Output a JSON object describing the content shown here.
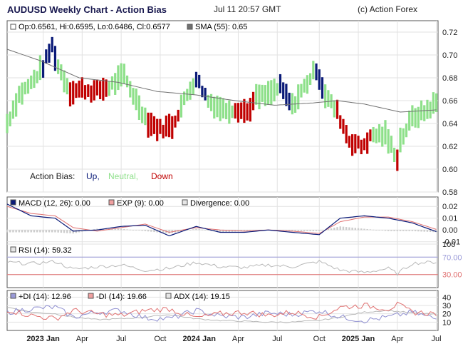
{
  "header": {
    "title": "AUDUSD Weekly Chart - Action Bias",
    "date": "Jul 11 20:57 GMT",
    "credit": "(c) Action Forex"
  },
  "colors": {
    "up": "#0a1a78",
    "neutral": "#8ee08a",
    "down": "#c00000",
    "sma": "#707070",
    "macd": "#0a1a78",
    "signal": "#e07070",
    "divergence": "#cccccc",
    "rsi": "#b8b8b8",
    "rsi_level_high": "#9a9ad8",
    "rsi_level_low": "#e07070",
    "plus_di": "#8e8ed0",
    "minus_di": "#e07070",
    "adx": "#b8b8b8",
    "grid": "#e2e2e2",
    "frame": "#555555"
  },
  "price_panel": {
    "legend_ohlc": "Op:0.6561, Hi:0.6595, Lo:0.6486, Cl:0.6577",
    "legend_sma": "SMA (55): 0.65",
    "bias_label": "Action Bias:",
    "bias_up": "Up,",
    "bias_neutral": "Neutral,",
    "bias_down": "Down"
  },
  "macd_panel": {
    "legend_macd": "MACD (12, 26): 0.00",
    "legend_exp": "EXP (9): 0.00",
    "legend_div": "Divergence: 0.00"
  },
  "rsi_panel": {
    "legend_rsi": "RSI (14): 59.32"
  },
  "dmi_panel": {
    "legend_pdi": "+DI (14): 12.96",
    "legend_mdi": "-DI (14): 19.66",
    "legend_adx": "ADX (14): 19.15"
  },
  "chart_data": [
    {
      "type": "bar",
      "subtype": "ohlc",
      "panel": "price",
      "title": "AUDUSD Weekly Chart - Action Bias",
      "x_range": [
        "2022-10-10",
        "2025-07-11"
      ],
      "ylim": [
        0.58,
        0.73
      ],
      "y_ticks": [
        0.58,
        0.6,
        0.62,
        0.64,
        0.66,
        0.68,
        0.7,
        0.72
      ],
      "y_tick_labels": [
        "0.58",
        "0.60",
        "0.62",
        "0.64",
        "0.66",
        "0.68",
        "0.70",
        "0.72"
      ],
      "x_ticks": [
        {
          "date": "2023-01-02",
          "label": "2023 Jan",
          "bold": true
        },
        {
          "date": "2023-04-03",
          "label": "Apr",
          "bold": false
        },
        {
          "date": "2023-07-03",
          "label": "Jul",
          "bold": false
        },
        {
          "date": "2023-10-02",
          "label": "Oct",
          "bold": false
        },
        {
          "date": "2024-01-01",
          "label": "2024 Jan",
          "bold": true
        },
        {
          "date": "2024-04-01",
          "label": "Apr",
          "bold": false
        },
        {
          "date": "2024-07-01",
          "label": "Jul",
          "bold": false
        },
        {
          "date": "2024-10-07",
          "label": "Oct",
          "bold": false
        },
        {
          "date": "2025-01-06",
          "label": "2025 Jan",
          "bold": true
        },
        {
          "date": "2025-04-07",
          "label": "Apr",
          "bold": false
        },
        {
          "date": "2025-07-07",
          "label": "Jul",
          "bold": false
        }
      ],
      "grid": true,
      "bias_key": [
        "up",
        "neutral",
        "down"
      ],
      "anchors": [
        {
          "x": "2022-10-10",
          "y": 0.64,
          "bias": "neutral"
        },
        {
          "x": "2022-11-07",
          "y": 0.665,
          "bias": "neutral"
        },
        {
          "x": "2022-12-05",
          "y": 0.675,
          "bias": "neutral"
        },
        {
          "x": "2023-01-02",
          "y": 0.69,
          "bias": "up"
        },
        {
          "x": "2023-01-23",
          "y": 0.708,
          "bias": "up"
        },
        {
          "x": "2023-02-06",
          "y": 0.69,
          "bias": "neutral"
        },
        {
          "x": "2023-03-06",
          "y": 0.668,
          "bias": "down"
        },
        {
          "x": "2023-04-03",
          "y": 0.67,
          "bias": "down"
        },
        {
          "x": "2023-05-01",
          "y": 0.668,
          "bias": "down"
        },
        {
          "x": "2023-06-05",
          "y": 0.672,
          "bias": "neutral"
        },
        {
          "x": "2023-07-10",
          "y": 0.682,
          "bias": "neutral"
        },
        {
          "x": "2023-08-07",
          "y": 0.66,
          "bias": "neutral"
        },
        {
          "x": "2023-09-04",
          "y": 0.641,
          "bias": "down"
        },
        {
          "x": "2023-10-02",
          "y": 0.635,
          "bias": "down"
        },
        {
          "x": "2023-10-30",
          "y": 0.638,
          "bias": "down"
        },
        {
          "x": "2023-11-20",
          "y": 0.655,
          "bias": "neutral"
        },
        {
          "x": "2023-12-25",
          "y": 0.68,
          "bias": "up"
        },
        {
          "x": "2024-01-22",
          "y": 0.66,
          "bias": "neutral"
        },
        {
          "x": "2024-02-26",
          "y": 0.652,
          "bias": "neutral"
        },
        {
          "x": "2024-03-25",
          "y": 0.653,
          "bias": "down"
        },
        {
          "x": "2024-04-22",
          "y": 0.65,
          "bias": "down"
        },
        {
          "x": "2024-05-13",
          "y": 0.663,
          "bias": "neutral"
        },
        {
          "x": "2024-06-10",
          "y": 0.665,
          "bias": "neutral"
        },
        {
          "x": "2024-07-08",
          "y": 0.672,
          "bias": "up"
        },
        {
          "x": "2024-08-05",
          "y": 0.655,
          "bias": "neutral"
        },
        {
          "x": "2024-09-02",
          "y": 0.672,
          "bias": "neutral"
        },
        {
          "x": "2024-09-30",
          "y": 0.688,
          "bias": "up"
        },
        {
          "x": "2024-10-21",
          "y": 0.665,
          "bias": "neutral"
        },
        {
          "x": "2024-11-18",
          "y": 0.65,
          "bias": "down"
        },
        {
          "x": "2024-12-16",
          "y": 0.625,
          "bias": "down"
        },
        {
          "x": "2025-01-13",
          "y": 0.62,
          "bias": "down"
        },
        {
          "x": "2025-02-10",
          "y": 0.63,
          "bias": "neutral"
        },
        {
          "x": "2025-03-10",
          "y": 0.63,
          "bias": "neutral"
        },
        {
          "x": "2025-04-07",
          "y": 0.61,
          "bias": "down"
        },
        {
          "x": "2025-04-14",
          "y": 0.625,
          "bias": "neutral"
        },
        {
          "x": "2025-05-12",
          "y": 0.645,
          "bias": "neutral"
        },
        {
          "x": "2025-06-09",
          "y": 0.65,
          "bias": "neutral"
        },
        {
          "x": "2025-07-07",
          "y": 0.658,
          "bias": "neutral"
        }
      ],
      "series": [
        {
          "name": "SMA (55)",
          "kind": "line",
          "points": [
            [
              "2022-10-10",
              0.705
            ],
            [
              "2022-12-26",
              0.695
            ],
            [
              "2023-03-27",
              0.68
            ],
            [
              "2023-06-26",
              0.676
            ],
            [
              "2023-09-25",
              0.668
            ],
            [
              "2023-12-25",
              0.665
            ],
            [
              "2024-03-25",
              0.66
            ],
            [
              "2024-06-24",
              0.656
            ],
            [
              "2024-09-23",
              0.658
            ],
            [
              "2024-11-18",
              0.66
            ],
            [
              "2025-01-20",
              0.657
            ],
            [
              "2025-04-14",
              0.65
            ],
            [
              "2025-07-11",
              0.652
            ]
          ]
        }
      ]
    },
    {
      "type": "line",
      "panel": "macd",
      "ylim": [
        -0.012,
        0.028
      ],
      "y_ticks": [
        -0.01,
        0.0,
        0.01,
        0.02
      ],
      "y_tick_labels": [
        "-0.01",
        "0.00",
        "0.01",
        "0.02"
      ],
      "series": [
        {
          "name": "MACD (12, 26)",
          "points": [
            [
              "2022-10-10",
              0.022
            ],
            [
              "2022-12-05",
              0.012
            ],
            [
              "2023-01-30",
              0.01
            ],
            [
              "2023-03-13",
              -0.001
            ],
            [
              "2023-05-08",
              0.0
            ],
            [
              "2023-07-03",
              0.003
            ],
            [
              "2023-08-28",
              0.004
            ],
            [
              "2023-10-23",
              -0.005
            ],
            [
              "2023-12-25",
              0.003
            ],
            [
              "2024-02-19",
              -0.002
            ],
            [
              "2024-04-15",
              -0.002
            ],
            [
              "2024-06-10",
              0.0
            ],
            [
              "2024-08-05",
              -0.002
            ],
            [
              "2024-10-07",
              -0.004
            ],
            [
              "2024-11-25",
              0.01
            ],
            [
              "2025-01-20",
              0.012
            ],
            [
              "2025-03-17",
              0.01
            ],
            [
              "2025-05-12",
              0.006
            ],
            [
              "2025-07-11",
              -0.002
            ]
          ]
        },
        {
          "name": "EXP (9)",
          "points": [
            [
              "2022-10-10",
              0.02
            ],
            [
              "2022-12-05",
              0.014
            ],
            [
              "2023-01-30",
              0.012
            ],
            [
              "2023-03-13",
              0.002
            ],
            [
              "2023-05-08",
              -0.001
            ],
            [
              "2023-07-03",
              0.002
            ],
            [
              "2023-08-28",
              0.005
            ],
            [
              "2023-10-23",
              -0.002
            ],
            [
              "2023-12-25",
              0.002
            ],
            [
              "2024-02-19",
              0.0
            ],
            [
              "2024-04-15",
              -0.001
            ],
            [
              "2024-06-10",
              0.0
            ],
            [
              "2024-08-05",
              -0.001
            ],
            [
              "2024-10-07",
              -0.003
            ],
            [
              "2024-11-25",
              0.007
            ],
            [
              "2025-01-20",
              0.011
            ],
            [
              "2025-03-17",
              0.011
            ],
            [
              "2025-05-12",
              0.007
            ],
            [
              "2025-07-11",
              0.0
            ]
          ]
        },
        {
          "name": "Divergence",
          "kind": "histogram",
          "points": [
            [
              "2022-10-10",
              -0.002
            ],
            [
              "2022-12-05",
              -0.002
            ],
            [
              "2023-01-30",
              -0.002
            ],
            [
              "2023-03-13",
              -0.003
            ],
            [
              "2023-05-08",
              0.001
            ],
            [
              "2023-07-03",
              0.001
            ],
            [
              "2023-08-28",
              -0.001
            ],
            [
              "2023-10-23",
              -0.003
            ],
            [
              "2023-12-25",
              0.001
            ],
            [
              "2024-02-19",
              -0.002
            ],
            [
              "2024-04-15",
              -0.001
            ],
            [
              "2024-06-10",
              0.0
            ],
            [
              "2024-08-05",
              -0.001
            ],
            [
              "2024-10-07",
              -0.001
            ],
            [
              "2024-11-25",
              0.003
            ],
            [
              "2025-01-20",
              0.001
            ],
            [
              "2025-03-17",
              -0.001
            ],
            [
              "2025-05-12",
              -0.001
            ],
            [
              "2025-07-11",
              -0.002
            ]
          ]
        }
      ]
    },
    {
      "type": "line",
      "panel": "rsi",
      "ylim": [
        0,
        100
      ],
      "y_ticks": [
        30,
        70,
        100
      ],
      "y_tick_labels": [
        "30.00",
        "70.00",
        "100"
      ],
      "levels": [
        70,
        30
      ],
      "series": [
        {
          "name": "RSI (14)",
          "points": [
            [
              "2022-10-10",
              58
            ],
            [
              "2022-12-05",
              55
            ],
            [
              "2023-01-30",
              60
            ],
            [
              "2023-03-13",
              42
            ],
            [
              "2023-05-08",
              48
            ],
            [
              "2023-07-03",
              52
            ],
            [
              "2023-08-28",
              40
            ],
            [
              "2023-10-23",
              44
            ],
            [
              "2023-12-25",
              58
            ],
            [
              "2024-02-19",
              48
            ],
            [
              "2024-04-15",
              46
            ],
            [
              "2024-06-10",
              52
            ],
            [
              "2024-08-05",
              48
            ],
            [
              "2024-10-07",
              60
            ],
            [
              "2024-11-25",
              40
            ],
            [
              "2025-01-20",
              35
            ],
            [
              "2025-03-17",
              44
            ],
            [
              "2025-04-07",
              32
            ],
            [
              "2025-05-12",
              56
            ],
            [
              "2025-07-11",
              59
            ]
          ]
        }
      ]
    },
    {
      "type": "line",
      "panel": "dmi",
      "ylim": [
        0,
        48
      ],
      "y_ticks": [
        10,
        20,
        30,
        40
      ],
      "y_tick_labels": [
        "10",
        "20",
        "30",
        "40"
      ],
      "series": [
        {
          "name": "+DI (14)",
          "points": [
            [
              "2022-10-10",
              22
            ],
            [
              "2022-12-05",
              26
            ],
            [
              "2023-01-30",
              28
            ],
            [
              "2023-03-13",
              16
            ],
            [
              "2023-05-08",
              22
            ],
            [
              "2023-07-03",
              24
            ],
            [
              "2023-08-28",
              15
            ],
            [
              "2023-10-23",
              14
            ],
            [
              "2023-12-25",
              24
            ],
            [
              "2024-02-19",
              17
            ],
            [
              "2024-04-15",
              16
            ],
            [
              "2024-06-10",
              21
            ],
            [
              "2024-08-05",
              19
            ],
            [
              "2024-10-07",
              24
            ],
            [
              "2024-11-25",
              16
            ],
            [
              "2025-01-20",
              12
            ],
            [
              "2025-03-17",
              16
            ],
            [
              "2025-05-12",
              22
            ],
            [
              "2025-07-11",
              13
            ]
          ]
        },
        {
          "name": "-DI (14)",
          "points": [
            [
              "2022-10-10",
              25
            ],
            [
              "2022-12-05",
              18
            ],
            [
              "2023-01-30",
              14
            ],
            [
              "2023-03-13",
              24
            ],
            [
              "2023-05-08",
              20
            ],
            [
              "2023-07-03",
              18
            ],
            [
              "2023-08-28",
              24
            ],
            [
              "2023-10-23",
              26
            ],
            [
              "2023-12-25",
              15
            ],
            [
              "2024-02-19",
              20
            ],
            [
              "2024-04-15",
              22
            ],
            [
              "2024-06-10",
              18
            ],
            [
              "2024-08-05",
              22
            ],
            [
              "2024-10-07",
              16
            ],
            [
              "2024-11-25",
              28
            ],
            [
              "2025-01-20",
              30
            ],
            [
              "2025-03-17",
              26
            ],
            [
              "2025-04-07",
              31
            ],
            [
              "2025-05-12",
              22
            ],
            [
              "2025-07-11",
              20
            ]
          ]
        },
        {
          "name": "ADX (14)",
          "points": [
            [
              "2022-10-10",
              28
            ],
            [
              "2022-12-05",
              22
            ],
            [
              "2023-01-30",
              20
            ],
            [
              "2023-03-13",
              16
            ],
            [
              "2023-05-08",
              13
            ],
            [
              "2023-07-03",
              14
            ],
            [
              "2023-08-28",
              16
            ],
            [
              "2023-10-23",
              19
            ],
            [
              "2023-12-25",
              14
            ],
            [
              "2024-02-19",
              12
            ],
            [
              "2024-04-15",
              11
            ],
            [
              "2024-06-10",
              10
            ],
            [
              "2024-08-05",
              10
            ],
            [
              "2024-10-07",
              12
            ],
            [
              "2024-11-25",
              16
            ],
            [
              "2025-01-20",
              22
            ],
            [
              "2025-03-17",
              24
            ],
            [
              "2025-05-12",
              21
            ],
            [
              "2025-07-11",
              19
            ]
          ]
        }
      ]
    }
  ]
}
